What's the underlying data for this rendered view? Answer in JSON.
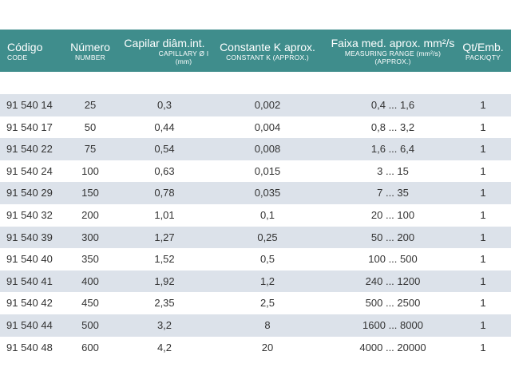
{
  "header": {
    "code": {
      "main": "Código",
      "sub": "CODE"
    },
    "number": {
      "main": "Número",
      "sub": "NUMBER"
    },
    "capillary": {
      "main": "Capilar diâm.int.",
      "sub1": "CAPILLARY Ø I",
      "sub2": "(mm)"
    },
    "constant": {
      "main": "Constante K aprox.",
      "sub": "CONSTANT K (APPROX.)"
    },
    "range": {
      "main": "Faixa med. aprox. mm²/s",
      "sub1": "MEASURING RANGE (mm²/s)",
      "sub2": "(APPROX.)"
    },
    "qty": {
      "main": "Qt/Emb.",
      "sub": "PACK/QTY"
    }
  },
  "colors": {
    "header_bg": "#3f8d8c",
    "row_shaded": "#dce2ea",
    "text": "#333333"
  },
  "rows": [
    {
      "code": "91 540 14",
      "number": "25",
      "capillary": "0,3",
      "constant": "0,002",
      "range": "0,4 ... 1,6",
      "qty": "1"
    },
    {
      "code": "91 540 17",
      "number": "50",
      "capillary": "0,44",
      "constant": "0,004",
      "range": "0,8 ... 3,2",
      "qty": "1"
    },
    {
      "code": "91 540 22",
      "number": "75",
      "capillary": "0,54",
      "constant": "0,008",
      "range": "1,6 ... 6,4",
      "qty": "1"
    },
    {
      "code": "91 540 24",
      "number": "100",
      "capillary": "0,63",
      "constant": "0,015",
      "range": "3 ... 15",
      "qty": "1"
    },
    {
      "code": "91 540 29",
      "number": "150",
      "capillary": "0,78",
      "constant": "0,035",
      "range": "7 ... 35",
      "qty": "1"
    },
    {
      "code": "91 540 32",
      "number": "200",
      "capillary": "1,01",
      "constant": "0,1",
      "range": "20 ... 100",
      "qty": "1"
    },
    {
      "code": "91 540 39",
      "number": "300",
      "capillary": "1,27",
      "constant": "0,25",
      "range": "50 ... 200",
      "qty": "1"
    },
    {
      "code": "91 540 40",
      "number": "350",
      "capillary": "1,52",
      "constant": "0,5",
      "range": "100 ... 500",
      "qty": "1"
    },
    {
      "code": "91 540 41",
      "number": "400",
      "capillary": "1,92",
      "constant": "1,2",
      "range": "240 ... 1200",
      "qty": "1"
    },
    {
      "code": "91 540 42",
      "number": "450",
      "capillary": "2,35",
      "constant": "2,5",
      "range": "500 ... 2500",
      "qty": "1"
    },
    {
      "code": "91 540 44",
      "number": "500",
      "capillary": "3,2",
      "constant": "8",
      "range": "1600 ... 8000",
      "qty": "1"
    },
    {
      "code": "91 540 48",
      "number": "600",
      "capillary": "4,2",
      "constant": "20",
      "range": "4000 ... 20000",
      "qty": "1"
    }
  ]
}
